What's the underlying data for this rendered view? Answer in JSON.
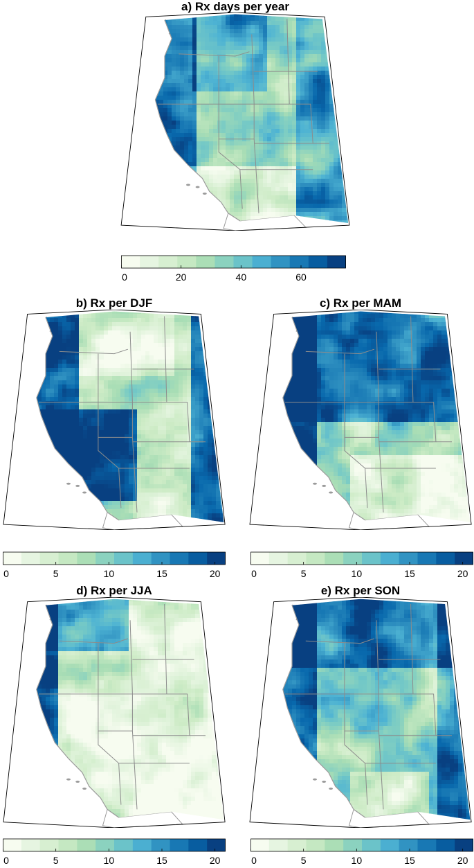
{
  "colors": {
    "palette": [
      "#f7fcf0",
      "#e0f3db",
      "#ccebc5",
      "#a8ddb5",
      "#7bccc4",
      "#4eb3d3",
      "#2b8cbe",
      "#0868ac",
      "#084081"
    ],
    "state_border": "#8c8c8c",
    "outline": "#000000",
    "land_outside": "#9b9b9b"
  },
  "panels": [
    {
      "id": "a",
      "title": "a) Rx days per year",
      "scale": "annual",
      "colorbar": {
        "min": 0,
        "max": 75,
        "bins": 12,
        "ticks": [
          {
            "value": 0,
            "label": "0"
          },
          {
            "value": 20,
            "label": "20"
          },
          {
            "value": 40,
            "label": "40"
          },
          {
            "value": 60,
            "label": "60"
          }
        ]
      }
    },
    {
      "id": "b",
      "title": "b) Rx per DJF",
      "scale": "DJF",
      "colorbar": null
    },
    {
      "id": "c",
      "title": "c) Rx per MAM",
      "scale": "MAM",
      "colorbar": null
    },
    {
      "id": "d",
      "title": "d) Rx per JJA",
      "scale": "JJA",
      "colorbar": null
    },
    {
      "id": "e",
      "title": "e) Rx per SON",
      "scale": "SON",
      "colorbar": null
    }
  ],
  "seasonal_colorbars": [
    {
      "id": "left-top",
      "min": 0,
      "max": 21,
      "bins": 12,
      "ticks": [
        {
          "value": 0,
          "label": "0"
        },
        {
          "value": 5,
          "label": "5"
        },
        {
          "value": 10,
          "label": "10"
        },
        {
          "value": 15,
          "label": "15"
        },
        {
          "value": 20,
          "label": "20"
        }
      ]
    },
    {
      "id": "right-top",
      "min": 0,
      "max": 21,
      "bins": 12,
      "ticks": [
        {
          "value": 0,
          "label": "0"
        },
        {
          "value": 5,
          "label": "5"
        },
        {
          "value": 10,
          "label": "10"
        },
        {
          "value": 15,
          "label": "15"
        },
        {
          "value": 20,
          "label": "20"
        }
      ]
    },
    {
      "id": "left-bottom",
      "min": 0,
      "max": 21,
      "bins": 12,
      "ticks": [
        {
          "value": 0,
          "label": "0"
        },
        {
          "value": 5,
          "label": "5"
        },
        {
          "value": 10,
          "label": "10"
        },
        {
          "value": 15,
          "label": "15"
        },
        {
          "value": 20,
          "label": "20"
        }
      ]
    },
    {
      "id": "right-bottom",
      "min": 0,
      "max": 21,
      "bins": 12,
      "ticks": [
        {
          "value": 0,
          "label": "0"
        },
        {
          "value": 5,
          "label": "5"
        },
        {
          "value": 10,
          "label": "10"
        },
        {
          "value": 15,
          "label": "15"
        },
        {
          "value": 20,
          "label": "20"
        }
      ]
    }
  ]
}
